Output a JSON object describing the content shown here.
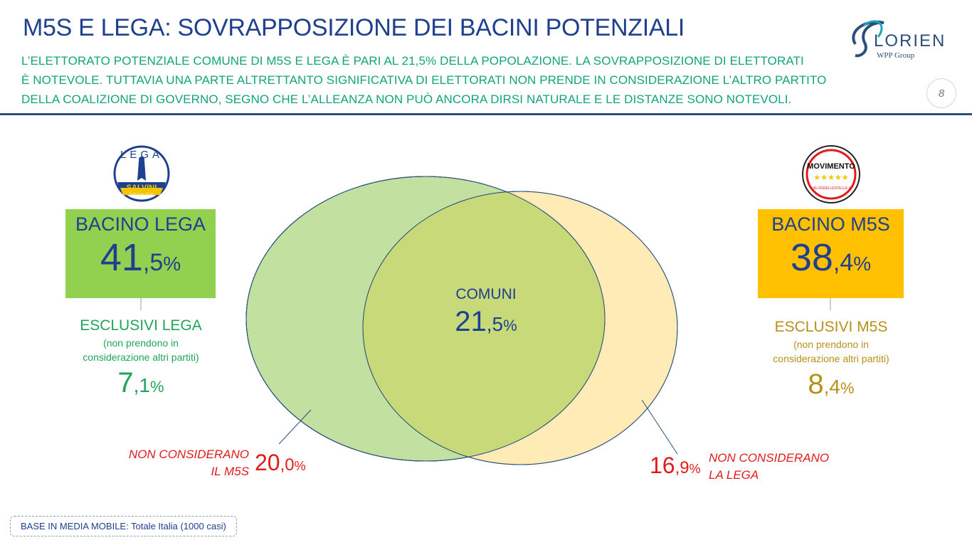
{
  "header": {
    "title": "M5S E LEGA: SOVRAPPOSIZIONE DEI BACINI POTENZIALI",
    "subtitle_lines": [
      "L’ELETTORATO POTENZIALE COMUNE DI M5S E LEGA È PARI AL 21,5% DELLA POPOLAZIONE. LA SOVRAPPOSIZIONE DI ELETTORATI",
      "È NOTEVOLE. TUTTAVIA UNA PARTE ALTRETTANTO SIGNIFICATIVA DI ELETTORATI NON PRENDE IN CONSIDERAZIONE L’ALTRO PARTITO",
      "DELLA COALIZIONE DI GOVERNO, SEGNO CHE L’ALLEANZA NON PUÒ ANCORA DIRSI NATURALE E LE DISTANZE SONO NOTEVOLI."
    ],
    "page_number": "8"
  },
  "brand": {
    "name": "LORIEN",
    "group": "WPP Group"
  },
  "logos": {
    "lega": {
      "top": "LEGA",
      "band": "SALVINI",
      "sub": "PREMIER"
    },
    "m5s": {
      "top": "MOVIMENTO",
      "stars": "★★★★★",
      "bottom": "ILBLOGDELLESTELLE.IT"
    }
  },
  "lega": {
    "box_title": "BACINO LEGA",
    "total": {
      "int": "41",
      "dec": ",5",
      "pct": "%"
    },
    "exclusive_title": "ESCLUSIVI LEGA",
    "exclusive_note_1": "(non prendono in",
    "exclusive_note_2": "considerazione altri partiti)",
    "exclusive": {
      "int": "7",
      "dec": ",1",
      "pct": "%"
    },
    "not_considering_1": "NON CONSIDERANO",
    "not_considering_2": "IL M5S",
    "not_considering": {
      "int": "20",
      "dec": ",0",
      "pct": "%"
    }
  },
  "m5s": {
    "box_title": "BACINO M5S",
    "total": {
      "int": "38",
      "dec": ",4",
      "pct": "%"
    },
    "exclusive_title": "ESCLUSIVI M5S",
    "exclusive_note_1": "(non prendono in",
    "exclusive_note_2": "considerazione altri partiti)",
    "exclusive": {
      "int": "8",
      "dec": ",4",
      "pct": "%"
    },
    "not_considering_1": "NON CONSIDERANO",
    "not_considering_2": "LA LEGA",
    "not_considering": {
      "int": "16",
      "dec": ",9",
      "pct": "%"
    }
  },
  "common": {
    "label": "COMUNI",
    "value": {
      "int": "21",
      "dec": ",5",
      "pct": "%"
    }
  },
  "colors": {
    "lega_box": "#92d050",
    "m5s_box": "#ffc000",
    "lega_circle": "#c2e0a0",
    "m5s_circle": "#ffe6a6",
    "overlap": "#c8d97a",
    "green_text": "#1fa55a",
    "gold_text": "#b8901a",
    "red": "#e11a1a",
    "blue": "#1f3f8f"
  },
  "footer": {
    "label": "BASE IN MEDIA MOBILE:",
    "text": "Totale Italia (1000 casi)"
  }
}
